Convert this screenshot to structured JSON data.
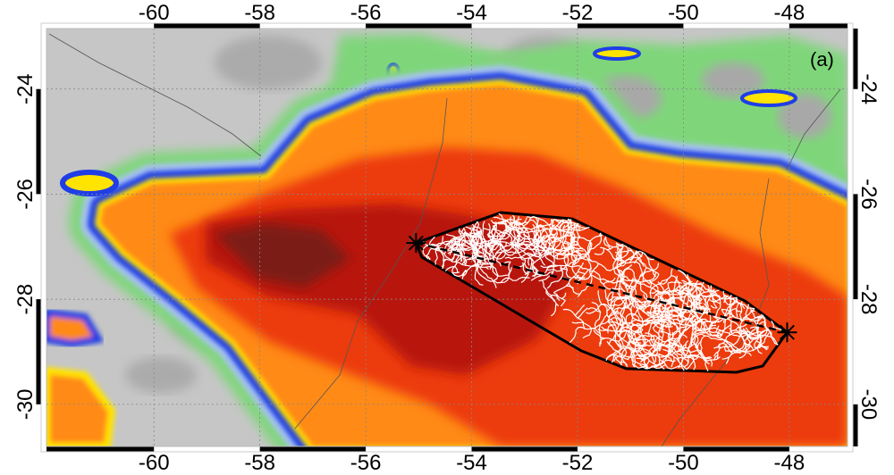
{
  "figure": {
    "panel_label": "(a)",
    "lon_ticks": [
      -60,
      -58,
      -56,
      -54,
      -52,
      -50,
      -48
    ],
    "lat_ticks": [
      -24,
      -26,
      -28,
      -30
    ],
    "lon_range": [
      -62.03,
      -46.9
    ],
    "lat_range": [
      -30.8,
      -22.85
    ],
    "graticule": true,
    "colors": {
      "clear_sky": "#c6c6c6",
      "green": "#7fd67a",
      "blue": "#1f3ee6",
      "light_blue": "#a9c3f0",
      "yellow": "#ffe400",
      "orange": "#ff8a18",
      "red": "#ec3a0e",
      "dark_red": "#b8140a",
      "darkest": "#7c1a14",
      "flash": "#ffffff",
      "hull": "#000000"
    },
    "flash": {
      "endpoints": [
        {
          "marker": "asterisk",
          "lon": -55.05,
          "lat": -26.93
        },
        {
          "marker": "asterisk",
          "lon": -48.04,
          "lat": -28.63
        }
      ],
      "line_style": "dashed",
      "convex_hull": [
        [
          -55.05,
          -26.93
        ],
        [
          -53.45,
          -26.35
        ],
        [
          -52.1,
          -26.47
        ],
        [
          -48.84,
          -28.03
        ],
        [
          -48.04,
          -28.63
        ],
        [
          -48.5,
          -29.27
        ],
        [
          -49.0,
          -29.39
        ],
        [
          -51.08,
          -29.32
        ],
        [
          -51.93,
          -28.98
        ],
        [
          -54.94,
          -27.2
        ]
      ]
    }
  }
}
